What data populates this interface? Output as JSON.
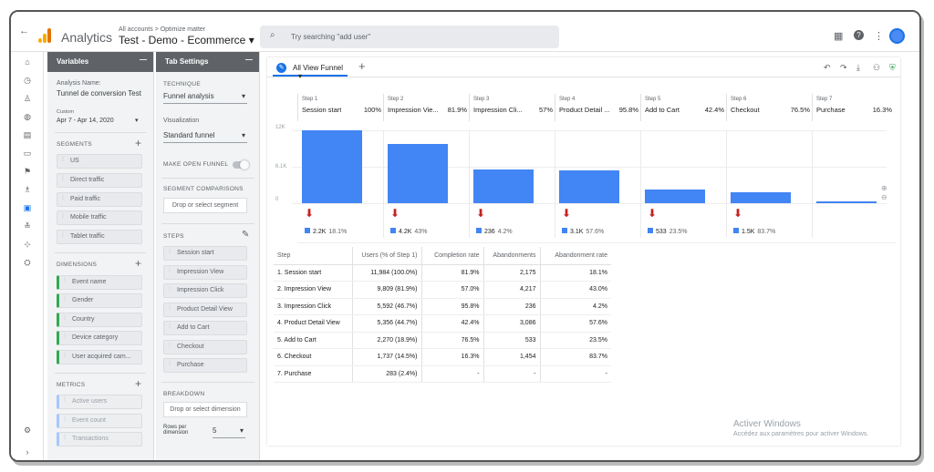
{
  "app": {
    "name": "Analytics",
    "breadcrumb": "All accounts > Optimize matter",
    "property": "Test - Demo - Ecommerce ▾",
    "search_placeholder": "Try searching \"add user\"",
    "back": "←"
  },
  "variables": {
    "title": "Variables",
    "minimize": "—",
    "analysis_label": "Analysis Name:",
    "analysis_name": "Tunnel de conversion Test",
    "custom_label": "Custom",
    "date_range": "Apr 7 - Apr 14, 2020",
    "segments_title": "SEGMENTS",
    "segments": [
      "US",
      "Direct traffic",
      "Paid traffic",
      "Mobile traffic",
      "Tablet traffic"
    ],
    "dimensions_title": "DIMENSIONS",
    "dimensions": [
      "Event name",
      "Gender",
      "Country",
      "Device category",
      "User acquired cam..."
    ],
    "metrics_title": "METRICS",
    "metrics": [
      "Active users",
      "Event count",
      "Transactions"
    ],
    "plus": "+"
  },
  "tab_settings": {
    "title": "Tab Settings",
    "minimize": "—",
    "technique_label": "TECHNIQUE",
    "technique": "Funnel analysis",
    "visualization_label": "Visualization",
    "visualization": "Standard funnel",
    "open_funnel_label": "MAKE OPEN FUNNEL",
    "segment_comp_label": "SEGMENT COMPARISONS",
    "segment_drop": "Drop or select segment",
    "steps_label": "STEPS",
    "steps": [
      "Session start",
      "Impression View",
      "Impression Click",
      "Product Detail View",
      "Add to Cart",
      "Checkout",
      "Purchase"
    ],
    "breakdown_label": "BREAKDOWN",
    "dimension_drop": "Drop or select dimension",
    "rows_label": "Rows per dimension",
    "rows_value": "5"
  },
  "main": {
    "tab_label": "All View Funnel",
    "tab_caret": "▾",
    "add_tab": "+",
    "tab_icon": "✎"
  },
  "funnel": {
    "y_labels": [
      "12K",
      "6.1K",
      "0"
    ],
    "steps": [
      {
        "num": "Step 1",
        "name": "Session start",
        "pct": "100%",
        "legend_val": "2.2K",
        "legend_pct": "18.1%"
      },
      {
        "num": "Step 2",
        "name": "Impression Vie...",
        "pct": "81.9%",
        "legend_val": "4.2K",
        "legend_pct": "43%"
      },
      {
        "num": "Step 3",
        "name": "Impression Cli...",
        "pct": "57%",
        "legend_val": "236",
        "legend_pct": "4.2%"
      },
      {
        "num": "Step 4",
        "name": "Product Detail ...",
        "pct": "95.8%",
        "legend_val": "3.1K",
        "legend_pct": "57.6%"
      },
      {
        "num": "Step 5",
        "name": "Add to Cart",
        "pct": "42.4%",
        "legend_val": "533",
        "legend_pct": "23.5%"
      },
      {
        "num": "Step 6",
        "name": "Checkout",
        "pct": "76.5%",
        "legend_val": "1.5K",
        "legend_pct": "83.7%"
      },
      {
        "num": "Step 7",
        "name": "Purchase",
        "pct": "16.3%",
        "legend_val": "",
        "legend_pct": ""
      }
    ]
  },
  "chart_data": {
    "type": "bar",
    "categories": [
      "Session start",
      "Impression View",
      "Impression Click",
      "Product Detail View",
      "Add to Cart",
      "Checkout",
      "Purchase"
    ],
    "values": [
      11984,
      9809,
      5592,
      5356,
      2270,
      1737,
      283
    ],
    "ylim": [
      0,
      12000
    ]
  },
  "table": {
    "headers": [
      "Step",
      "Users (% of Step 1)",
      "Completion rate",
      "Abandonments",
      "Abandonment rate"
    ],
    "rows": [
      [
        "1. Session start",
        "11,984 (100.0%)",
        "81.9%",
        "2,175",
        "18.1%"
      ],
      [
        "2. Impression View",
        "9,809 (81.9%)",
        "57.0%",
        "4,217",
        "43.0%"
      ],
      [
        "3. Impression Click",
        "5,592 (46.7%)",
        "95.8%",
        "236",
        "4.2%"
      ],
      [
        "4. Product Detail View",
        "5,356 (44.7%)",
        "42.4%",
        "3,086",
        "57.6%"
      ],
      [
        "5. Add to Cart",
        "2,270 (18.9%)",
        "76.5%",
        "533",
        "23.5%"
      ],
      [
        "6. Checkout",
        "1,737 (14.5%)",
        "16.3%",
        "1,454",
        "83.7%"
      ],
      [
        "7. Purchase",
        "283 (2.4%)",
        "-",
        "-",
        "-"
      ]
    ]
  },
  "watermark": {
    "line1": "Activer Windows",
    "line2": "Accédez aux paramètres pour activer Windows."
  },
  "colors": {
    "bar": "#4285f4",
    "arrow": "#c5221f",
    "accent": "#1a73e8"
  }
}
